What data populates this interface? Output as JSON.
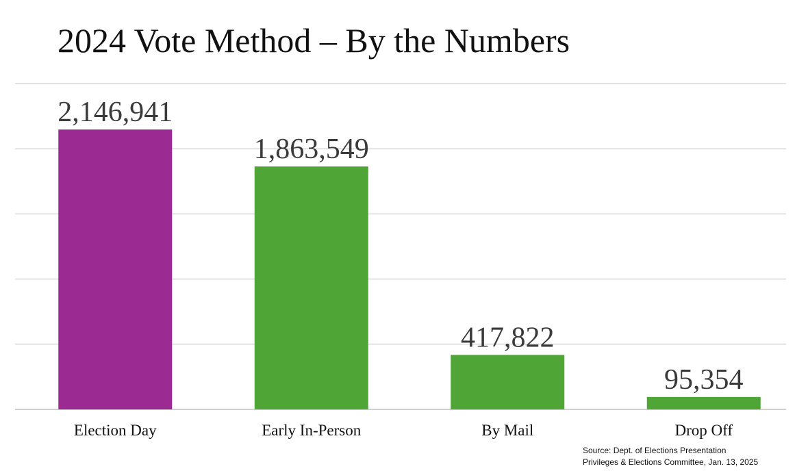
{
  "chart_data": {
    "type": "bar",
    "title": "2024 Vote Method – By the Numbers",
    "xlabel": "",
    "ylabel": "",
    "categories": [
      "Election Day",
      "Early In-Person",
      "By Mail",
      "Drop Off"
    ],
    "values": [
      2146941,
      1863549,
      417822,
      95354
    ],
    "value_labels": [
      "2,146,941",
      "1,863,549",
      "417,822",
      "95,354"
    ],
    "colors": [
      "#9b2b93",
      "#4fa636",
      "#4fa636",
      "#4fa636"
    ],
    "ylim": [
      0,
      2500000
    ],
    "grid": true,
    "legend": "none"
  },
  "source": {
    "line1": "Source: Dept. of Elections Presentation",
    "line2": "Privileges & Elections Committee, Jan. 13, 2025"
  }
}
